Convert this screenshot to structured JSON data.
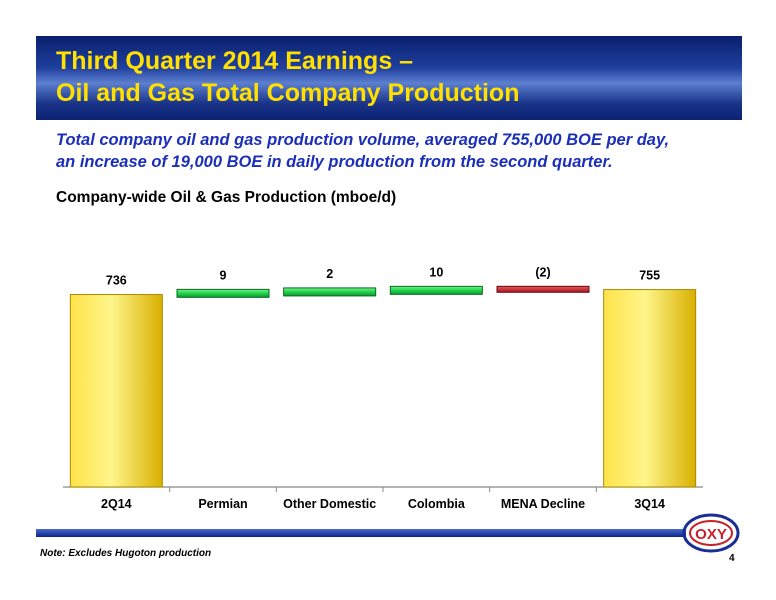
{
  "header": {
    "title_line1": "Third Quarter 2014 Earnings –",
    "title_line2": "Oil and Gas Total Company Production"
  },
  "subtitle": {
    "line1": "Total company oil and gas production volume, averaged 755,000 BOE per day,",
    "line2": "an increase of 19,000 BOE in daily production from the second quarter."
  },
  "footer": {
    "note": "Note:  Excludes Hugoton production",
    "page_number": "4",
    "logo_text": "OXY"
  },
  "colors": {
    "title_text": "#ffe000",
    "subtitle_text": "#1c2fb8",
    "total_bar": "#ffd700",
    "increase_bar": "#22c844",
    "decrease_bar": "#c8202a"
  },
  "chart_data": {
    "type": "bar",
    "subtype": "waterfall",
    "title": "Company-wide Oil & Gas Production (mboe/d)",
    "categories": [
      "2Q14",
      "Permian",
      "Other Domestic",
      "Colombia",
      "MENA Decline",
      "3Q14"
    ],
    "values": [
      736,
      9,
      2,
      10,
      -2,
      755
    ],
    "data_labels": [
      "736",
      "9",
      "2",
      "10",
      "(2)",
      "755"
    ],
    "kinds": [
      "total",
      "increase",
      "increase",
      "increase",
      "decrease",
      "total"
    ],
    "ylim": [
      0,
      780
    ],
    "grid": false,
    "legend": "none"
  }
}
